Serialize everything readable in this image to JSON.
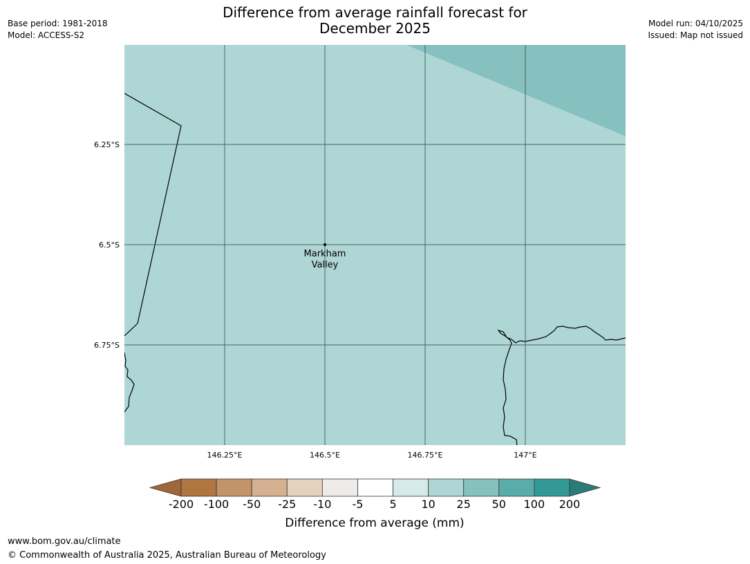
{
  "header": {
    "title_line1": "Difference from average rainfall forecast for",
    "title_line2": "December 2025",
    "base_period": "Base period: 1981-2018",
    "model": "Model: ACCESS-S2",
    "model_run": "Model run: 04/10/2025",
    "issued": "Issued: Map not issued"
  },
  "map": {
    "lon_ticks": [
      {
        "value": 146.25,
        "label": "146.25°E"
      },
      {
        "value": 146.5,
        "label": "146.5°E"
      },
      {
        "value": 146.75,
        "label": "146.75°E"
      },
      {
        "value": 147.0,
        "label": "147°E"
      }
    ],
    "lat_ticks": [
      {
        "value": -6.25,
        "label": "6.25°S"
      },
      {
        "value": -6.5,
        "label": "6.5°S"
      },
      {
        "value": -6.75,
        "label": "6.75°S"
      }
    ],
    "place": {
      "line1": "Markham",
      "line2": "Valley",
      "lon": 146.5,
      "lat": -6.5
    },
    "region_colors": {
      "background": "#aed6d5",
      "upper_right": "#86c0bf"
    }
  },
  "colorbar": {
    "title": "Difference from average (mm)",
    "labels": [
      "-200",
      "-100",
      "-50",
      "-25",
      "-10",
      "-5",
      "5",
      "10",
      "25",
      "50",
      "100",
      "200"
    ],
    "colors": [
      "#a0683a",
      "#b07640",
      "#c39369",
      "#d5b191",
      "#e6d1bf",
      "#efebe8",
      "#ffffff",
      "#d5eae9",
      "#aed6d5",
      "#86c0bf",
      "#5aacab",
      "#339997",
      "#2a7c7a"
    ]
  },
  "footer": {
    "website": "www.bom.gov.au/climate",
    "copyright": "© Commonwealth of Australia 2025, Australian Bureau of Meteorology"
  }
}
